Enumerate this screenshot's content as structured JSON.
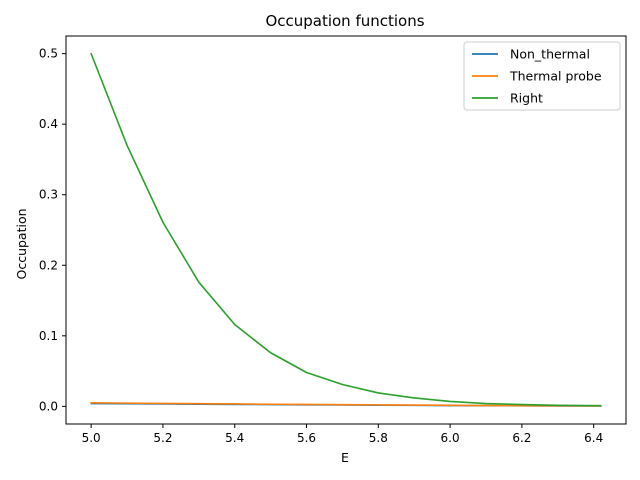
{
  "chart_data": {
    "type": "line",
    "title": "Occupation functions",
    "xlabel": "E",
    "ylabel": "Occupation",
    "xlim": [
      4.93,
      6.49
    ],
    "ylim": [
      -0.025,
      0.525
    ],
    "xticks": [
      5.0,
      5.2,
      5.4,
      5.6,
      5.8,
      6.0,
      6.2,
      6.4
    ],
    "xtick_labels": [
      "5.0",
      "5.2",
      "5.4",
      "5.6",
      "5.8",
      "6.0",
      "6.2",
      "6.4"
    ],
    "yticks": [
      0.0,
      0.1,
      0.2,
      0.3,
      0.4,
      0.5
    ],
    "ytick_labels": [
      "0.0",
      "0.1",
      "0.2",
      "0.3",
      "0.4",
      "0.5"
    ],
    "grid": false,
    "legend_position": "top-right",
    "x": [
      5.0,
      5.1,
      5.2,
      5.3,
      5.4,
      5.5,
      5.6,
      5.7,
      5.8,
      5.9,
      6.0,
      6.1,
      6.2,
      6.3,
      6.42
    ],
    "series": [
      {
        "name": "Non_thermal",
        "color": "#1f77b4",
        "values": [
          0.004,
          0.0037,
          0.0034,
          0.0031,
          0.0028,
          0.0025,
          0.0022,
          0.002,
          0.0017,
          0.0015,
          0.0012,
          0.001,
          0.0008,
          0.0006,
          0.0005
        ]
      },
      {
        "name": "Thermal probe",
        "color": "#ff7f0e",
        "values": [
          0.005,
          0.0046,
          0.0042,
          0.0038,
          0.0034,
          0.003,
          0.0027,
          0.0024,
          0.0021,
          0.0018,
          0.0015,
          0.0012,
          0.001,
          0.0008,
          0.0006
        ]
      },
      {
        "name": "Right",
        "color": "#2ca02c",
        "values": [
          0.5,
          0.37,
          0.261,
          0.176,
          0.116,
          0.076,
          0.048,
          0.031,
          0.019,
          0.012,
          0.007,
          0.004,
          0.0025,
          0.0015,
          0.001
        ]
      }
    ]
  }
}
